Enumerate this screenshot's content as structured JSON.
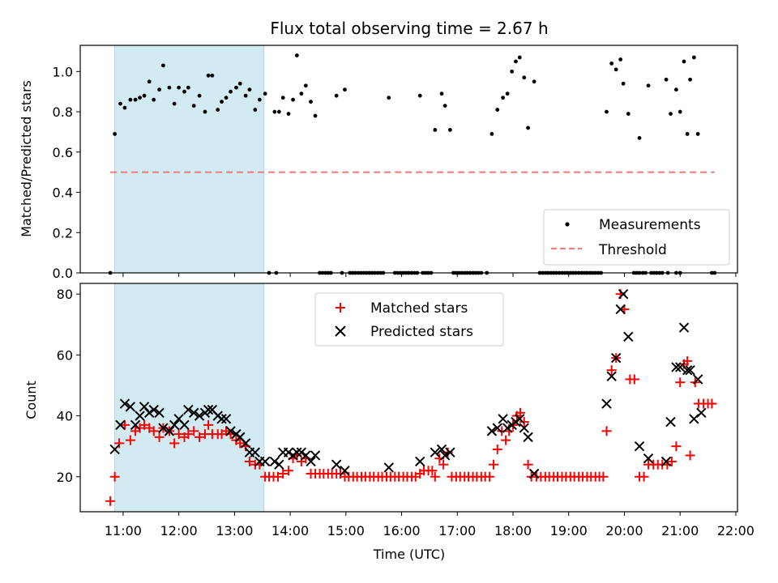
{
  "chart_data": [
    {
      "type": "scatter",
      "title": "Flux total observing time = 2.67 h",
      "xlabel": "",
      "ylabel": "Matched/Predicted stars",
      "xlim": [
        10.23,
        22.03
      ],
      "ylim": [
        0,
        1.13
      ],
      "yticks": [
        0.0,
        0.2,
        0.4,
        0.6,
        0.8,
        1.0
      ],
      "ytick_labels": [
        "0.0",
        "0.2",
        "0.4",
        "0.6",
        "0.8",
        "1.0"
      ],
      "shaded_span": [
        10.85,
        13.53
      ],
      "shade_color": "#add8e6",
      "legend_position": "lower right",
      "series": [
        {
          "name": "Measurements",
          "kind": "scatter",
          "color": "#000000",
          "marker": "dot",
          "x": [
            10.77,
            10.85,
            10.95,
            11.03,
            11.13,
            11.22,
            11.3,
            11.38,
            11.47,
            11.55,
            11.65,
            11.72,
            11.83,
            11.92,
            12.0,
            12.1,
            12.17,
            12.27,
            12.37,
            12.47,
            12.53,
            12.6,
            12.7,
            12.77,
            12.85,
            12.93,
            13.03,
            13.1,
            13.2,
            13.27,
            13.37,
            13.45,
            13.55,
            13.72,
            13.8,
            13.87,
            13.97,
            14.05,
            14.12,
            14.2,
            14.28,
            14.37,
            14.45,
            14.83,
            14.98,
            15.77,
            16.33,
            16.6,
            16.72,
            16.78,
            16.87,
            17.62,
            17.72,
            17.82,
            17.9,
            17.98,
            18.05,
            18.12,
            18.2,
            18.27,
            18.38,
            19.68,
            19.77,
            19.85,
            19.93,
            19.98,
            20.07,
            20.27,
            20.43,
            20.75,
            20.83,
            20.93,
            21.0,
            21.07,
            21.13,
            21.18,
            21.25,
            21.32
          ],
          "y": [
            0.0,
            0.69,
            0.84,
            0.82,
            0.86,
            0.86,
            0.87,
            0.88,
            0.95,
            0.86,
            0.91,
            1.03,
            0.92,
            0.84,
            0.92,
            0.9,
            0.92,
            0.83,
            0.88,
            0.8,
            0.98,
            0.98,
            0.81,
            0.85,
            0.87,
            0.9,
            0.92,
            0.94,
            0.88,
            0.91,
            0.81,
            0.86,
            0.89,
            0.8,
            0.8,
            0.87,
            0.79,
            0.86,
            1.08,
            0.89,
            0.93,
            0.85,
            0.78,
            0.88,
            0.91,
            0.87,
            0.88,
            0.71,
            0.89,
            0.83,
            0.71,
            0.69,
            0.81,
            0.87,
            0.89,
            1.0,
            1.05,
            1.07,
            0.97,
            0.72,
            0.95,
            0.8,
            1.04,
            1.01,
            1.06,
            0.94,
            0.79,
            0.67,
            0.93,
            0.96,
            0.79,
            0.91,
            0.8,
            1.05,
            0.69,
            0.96,
            1.07,
            0.69
          ]
        },
        {
          "name": "Measurements",
          "kind": "scatter",
          "color": "#000000",
          "marker": "dot",
          "x": [
            13.62,
            13.75,
            14.53,
            14.58,
            14.63,
            14.68,
            14.73,
            14.93,
            15.07,
            15.12,
            15.17,
            15.22,
            15.27,
            15.32,
            15.37,
            15.42,
            15.47,
            15.52,
            15.57,
            15.62,
            15.67,
            15.88,
            15.93,
            15.98,
            16.03,
            16.08,
            16.13,
            16.18,
            16.23,
            16.28,
            16.38,
            16.43,
            16.48,
            16.53,
            16.93,
            16.98,
            17.03,
            17.08,
            17.13,
            17.18,
            17.23,
            17.28,
            17.33,
            17.38,
            17.43,
            17.53,
            18.48,
            18.53,
            18.58,
            18.63,
            18.68,
            18.73,
            18.78,
            18.83,
            18.88,
            18.93,
            18.98,
            19.03,
            19.08,
            19.13,
            19.18,
            19.23,
            19.28,
            19.33,
            19.38,
            19.43,
            19.48,
            19.53,
            19.58,
            20.17,
            20.22,
            20.27,
            20.33,
            20.38,
            20.48,
            20.53,
            20.58,
            20.63,
            20.68,
            20.78,
            20.93,
            21.0,
            21.57,
            21.62
          ],
          "y": [
            0.0,
            0.0,
            0.0,
            0.0,
            0.0,
            0.0,
            0.0,
            0.0,
            0.0,
            0.0,
            0.0,
            0.0,
            0.0,
            0.0,
            0.0,
            0.0,
            0.0,
            0.0,
            0.0,
            0.0,
            0.0,
            0.0,
            0.0,
            0.0,
            0.0,
            0.0,
            0.0,
            0.0,
            0.0,
            0.0,
            0.0,
            0.0,
            0.0,
            0.0,
            0.0,
            0.0,
            0.0,
            0.0,
            0.0,
            0.0,
            0.0,
            0.0,
            0.0,
            0.0,
            0.0,
            0.0,
            0.0,
            0.0,
            0.0,
            0.0,
            0.0,
            0.0,
            0.0,
            0.0,
            0.0,
            0.0,
            0.0,
            0.0,
            0.0,
            0.0,
            0.0,
            0.0,
            0.0,
            0.0,
            0.0,
            0.0,
            0.0,
            0.0,
            0.0,
            0.0,
            0.0,
            0.0,
            0.0,
            0.0,
            0.0,
            0.0,
            0.0,
            0.0,
            0.0,
            0.0,
            0.0,
            0.0,
            0.0,
            0.0
          ]
        },
        {
          "name": "Threshold",
          "kind": "line",
          "color": "#f08080",
          "dash": true,
          "x": [
            10.77,
            21.62
          ],
          "y": [
            0.5,
            0.5
          ]
        }
      ]
    },
    {
      "type": "scatter",
      "title": "",
      "xlabel": "Time (UTC)",
      "ylabel": "Count",
      "xlim": [
        10.23,
        22.03
      ],
      "ylim": [
        8.5,
        83.5
      ],
      "yticks": [
        20,
        40,
        60,
        80
      ],
      "ytick_labels": [
        "20",
        "40",
        "60",
        "80"
      ],
      "xticks": [
        11,
        12,
        13,
        14,
        15,
        16,
        17,
        18,
        19,
        20,
        21,
        22
      ],
      "xtick_labels": [
        "11:00",
        "12:00",
        "13:00",
        "14:00",
        "15:00",
        "16:00",
        "17:00",
        "18:00",
        "19:00",
        "20:00",
        "21:00",
        "22:00"
      ],
      "shaded_span": [
        10.85,
        13.53
      ],
      "shade_color": "#add8e6",
      "legend_position": "upper center",
      "series": [
        {
          "name": "Matched stars",
          "kind": "scatter",
          "color": "#ff0000",
          "marker": "plus",
          "x": [
            10.77,
            10.85,
            10.93,
            11.03,
            11.13,
            11.22,
            11.3,
            11.38,
            11.47,
            11.55,
            11.65,
            11.72,
            11.83,
            11.92,
            12.0,
            12.1,
            12.17,
            12.27,
            12.37,
            12.47,
            12.53,
            12.6,
            12.7,
            12.77,
            12.85,
            12.93,
            13.03,
            13.1,
            13.2,
            13.27,
            13.37,
            13.45,
            13.55,
            13.62,
            13.7,
            13.78,
            13.87,
            13.97,
            14.05,
            14.12,
            14.2,
            14.28,
            14.37,
            14.45,
            14.53,
            14.6,
            14.68,
            14.75,
            14.83,
            14.9,
            14.98,
            15.05,
            15.13,
            15.2,
            15.28,
            15.35,
            15.43,
            15.5,
            15.58,
            15.65,
            15.73,
            15.8,
            15.88,
            15.95,
            16.03,
            16.1,
            16.18,
            16.25,
            16.33,
            16.4,
            16.48,
            16.55,
            16.6,
            16.68,
            16.75,
            16.83,
            16.9,
            16.98,
            17.05,
            17.13,
            17.2,
            17.28,
            17.35,
            17.43,
            17.5,
            17.58,
            17.65,
            17.72,
            17.8,
            17.87,
            17.93,
            18.0,
            18.07,
            18.13,
            18.2,
            18.27,
            18.33,
            18.42,
            18.5,
            18.58,
            18.65,
            18.73,
            18.8,
            18.88,
            18.95,
            19.03,
            19.1,
            19.18,
            19.25,
            19.33,
            19.4,
            19.48,
            19.55,
            19.62,
            19.68,
            19.77,
            19.85,
            19.93,
            20.0,
            20.1,
            20.18,
            20.27,
            20.35,
            20.43,
            20.52,
            20.6,
            20.68,
            20.77,
            20.85,
            20.93,
            21.0,
            21.07,
            21.13,
            21.18,
            21.27,
            21.33,
            21.42,
            21.5,
            21.57
          ],
          "y": [
            12,
            20,
            31,
            37,
            32,
            35,
            36,
            37,
            36,
            35,
            33,
            36,
            35,
            31,
            34,
            33,
            34,
            35,
            33,
            34,
            37,
            34,
            34,
            34,
            35,
            34,
            32,
            31,
            30,
            25,
            24,
            24,
            20,
            20,
            20,
            20,
            21,
            22,
            26,
            27,
            25,
            26,
            21,
            21,
            21,
            21,
            21,
            21,
            21,
            21,
            20,
            20,
            20,
            20,
            20,
            20,
            20,
            20,
            20,
            20,
            20,
            20,
            20,
            20,
            20,
            20,
            20,
            20,
            21,
            22,
            22,
            22,
            20,
            26,
            24,
            28,
            20,
            20,
            20,
            20,
            20,
            20,
            20,
            20,
            20,
            20,
            24,
            29,
            35,
            32,
            35,
            37,
            40,
            41,
            38,
            24,
            20,
            20,
            20,
            20,
            20,
            20,
            20,
            20,
            20,
            20,
            20,
            20,
            20,
            20,
            20,
            20,
            20,
            20,
            35,
            55,
            59,
            80,
            75,
            52,
            52,
            20,
            20,
            24,
            24,
            24,
            24,
            24,
            25,
            30,
            51,
            57,
            58,
            27,
            51,
            44,
            44,
            44,
            44
          ]
        },
        {
          "name": "Predicted stars",
          "kind": "scatter",
          "color": "#000000",
          "marker": "x",
          "x": [
            10.85,
            10.95,
            11.03,
            11.13,
            11.22,
            11.3,
            11.38,
            11.47,
            11.55,
            11.65,
            11.72,
            11.83,
            11.92,
            12.0,
            12.1,
            12.17,
            12.27,
            12.37,
            12.47,
            12.53,
            12.6,
            12.7,
            12.77,
            12.85,
            12.93,
            13.03,
            13.1,
            13.2,
            13.27,
            13.37,
            13.45,
            13.55,
            13.72,
            13.8,
            13.87,
            13.97,
            14.05,
            14.12,
            14.2,
            14.28,
            14.37,
            14.45,
            14.83,
            14.98,
            15.77,
            16.33,
            16.6,
            16.72,
            16.78,
            16.87,
            17.62,
            17.72,
            17.82,
            17.9,
            17.98,
            18.05,
            18.12,
            18.2,
            18.27,
            18.38,
            19.68,
            19.77,
            19.85,
            19.93,
            19.98,
            20.07,
            20.27,
            20.43,
            20.75,
            20.83,
            20.93,
            21.0,
            21.07,
            21.13,
            21.18,
            21.25,
            21.32
          ],
          "y": [
            29,
            37,
            44,
            43,
            37,
            40,
            43,
            41,
            42,
            41,
            36,
            35,
            37,
            39,
            37,
            42,
            41,
            40,
            41,
            42,
            42,
            40,
            39,
            39,
            35,
            34,
            33,
            31,
            28,
            28,
            25,
            25,
            25,
            24,
            28,
            28,
            27,
            28,
            28,
            27,
            25,
            27,
            24,
            22,
            23,
            25,
            28,
            29,
            27,
            28,
            35,
            36,
            39,
            36,
            37,
            38,
            39,
            36,
            33,
            21,
            44,
            53,
            59,
            75,
            80,
            66,
            30,
            26,
            25,
            38,
            56,
            56,
            69,
            55,
            55,
            39,
            52
          ]
        },
        {
          "name": "Predicted stars",
          "kind": "scatter",
          "color": "#000000",
          "marker": "x",
          "x": [
            21.38
          ],
          "y": [
            41
          ]
        }
      ]
    }
  ]
}
